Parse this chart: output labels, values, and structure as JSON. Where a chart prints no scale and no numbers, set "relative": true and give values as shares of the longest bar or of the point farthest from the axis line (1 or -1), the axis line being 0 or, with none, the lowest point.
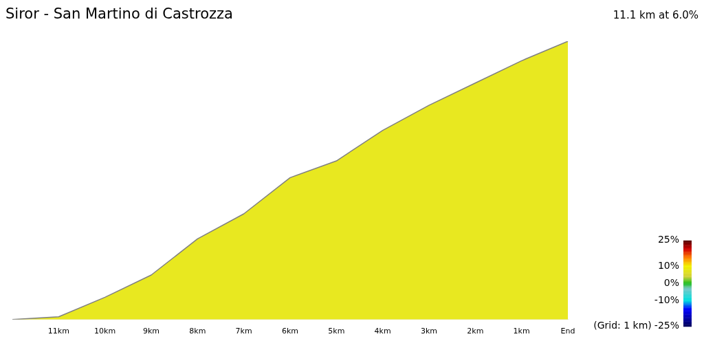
{
  "chart_data": {
    "type": "area",
    "title": "Siror - San Martino di Castrozza",
    "subtitle": "11.1 km at 6.0%",
    "relative": true,
    "categories": [
      null,
      "11km",
      "10km",
      "9km",
      "8km",
      "7km",
      "6km",
      "5km",
      "4km",
      "3km",
      "2km",
      "1km",
      "End"
    ],
    "values": [
      0,
      0.01,
      0.08,
      0.16,
      0.29,
      0.38,
      0.51,
      0.57,
      0.68,
      0.77,
      0.85,
      0.93,
      1
    ],
    "color": "#e8e820",
    "clim": [
      -25,
      25
    ],
    "cticks": [
      {
        "value": 25,
        "label": "25%"
      },
      {
        "value": 10,
        "label": "10%"
      },
      {
        "value": 0,
        "label": "0%"
      },
      {
        "value": -10,
        "label": "-10%"
      },
      {
        "value": -25,
        "label": "-25%"
      }
    ],
    "annotations": [
      "(Grid: 1 km)"
    ],
    "grid": false,
    "legend": false
  }
}
